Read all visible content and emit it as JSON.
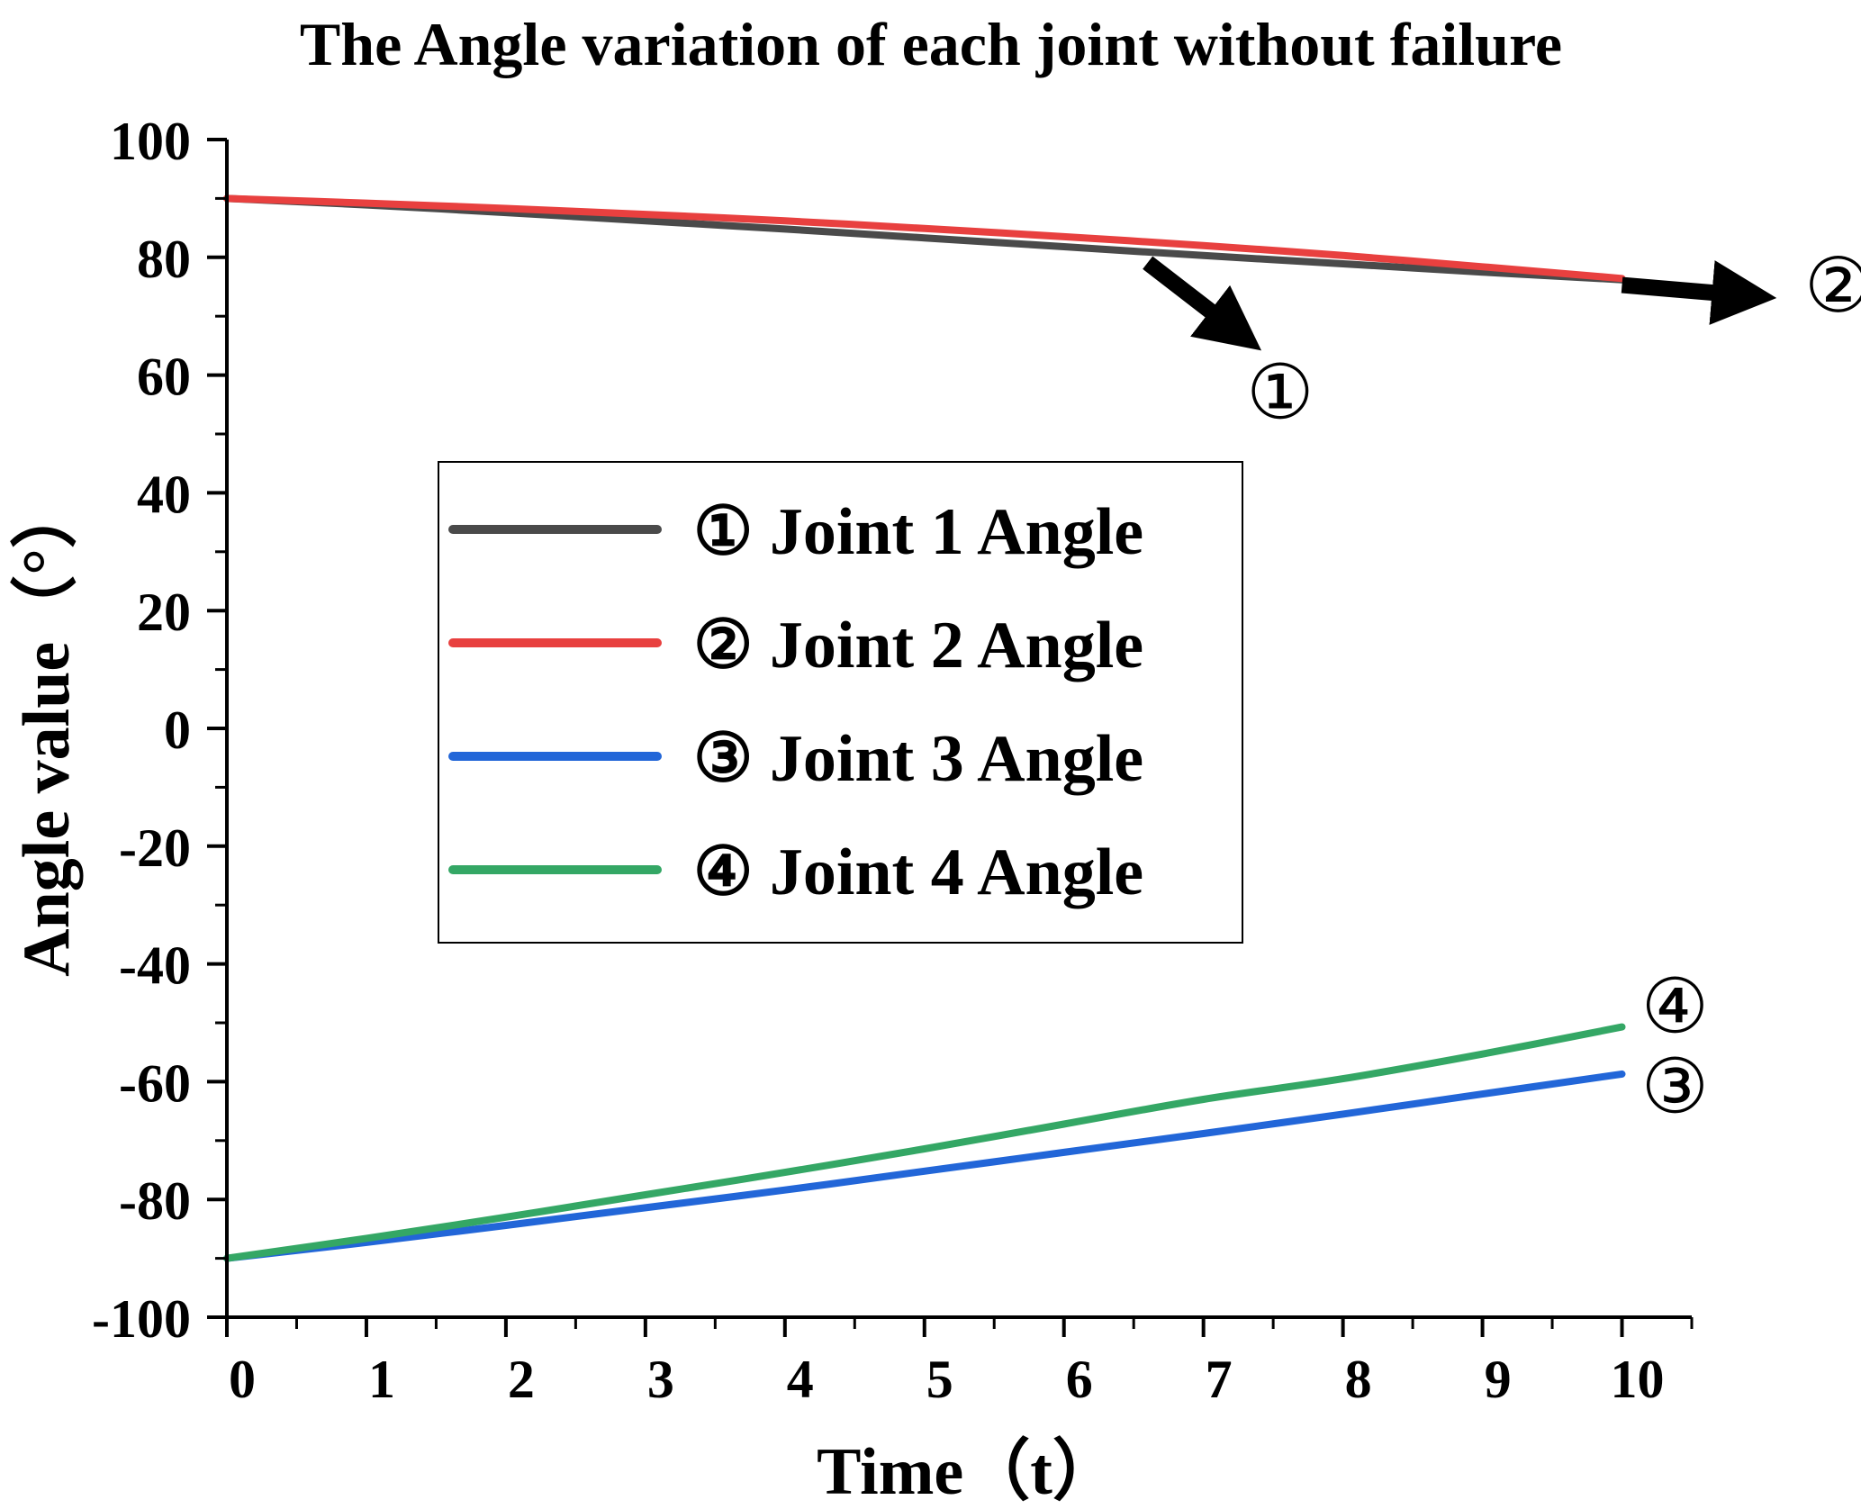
{
  "chart_data": {
    "type": "line",
    "title": "The Angle variation of each joint without failure",
    "xlabel": "Time（t）",
    "ylabel": "Angle value（°）",
    "xlim": [
      0,
      10.5
    ],
    "ylim": [
      -100,
      100
    ],
    "x_ticks": [
      0,
      1,
      2,
      3,
      4,
      5,
      6,
      7,
      8,
      9,
      10
    ],
    "y_ticks": [
      100,
      80,
      60,
      40,
      20,
      0,
      -20,
      -40,
      -60,
      -80,
      -100
    ],
    "x_minor_step": 0.5,
    "y_minor_step": 10,
    "grid": false,
    "legend_position": "center-left",
    "x": [
      0,
      1,
      2,
      3,
      4,
      5,
      6,
      7,
      8,
      9,
      10
    ],
    "series": [
      {
        "name": "① Joint 1 Angle",
        "color": "#4a4a4a",
        "values": [
          90,
          88.9,
          87.6,
          86.2,
          84.8,
          83.3,
          81.8,
          80.3,
          78.9,
          77.5,
          76.2
        ]
      },
      {
        "name": "② Joint 2 Angle",
        "color": "#e8403f",
        "values": [
          90,
          89.2,
          88.3,
          87.3,
          86.2,
          84.9,
          83.5,
          82,
          80.3,
          78.4,
          76.4
        ]
      },
      {
        "name": "③ Joint 3 Angle",
        "color": "#2266d8",
        "values": [
          -90,
          -87.3,
          -84.4,
          -81.4,
          -78.4,
          -75.2,
          -72,
          -68.8,
          -65.5,
          -62.1,
          -58.7
        ]
      },
      {
        "name": "④ Joint 4 Angle",
        "color": "#34a765",
        "values": [
          -90,
          -86.6,
          -83,
          -79.2,
          -75.4,
          -71.4,
          -67.2,
          -63,
          -59.5,
          -55.3,
          -50.7
        ]
      }
    ],
    "annotations": [
      {
        "text": "①",
        "series": 0,
        "arrow": true
      },
      {
        "text": "②",
        "series": 1,
        "arrow": true
      },
      {
        "text": "③",
        "series": 2,
        "arrow": false
      },
      {
        "text": "④",
        "series": 3,
        "arrow": false
      }
    ]
  }
}
